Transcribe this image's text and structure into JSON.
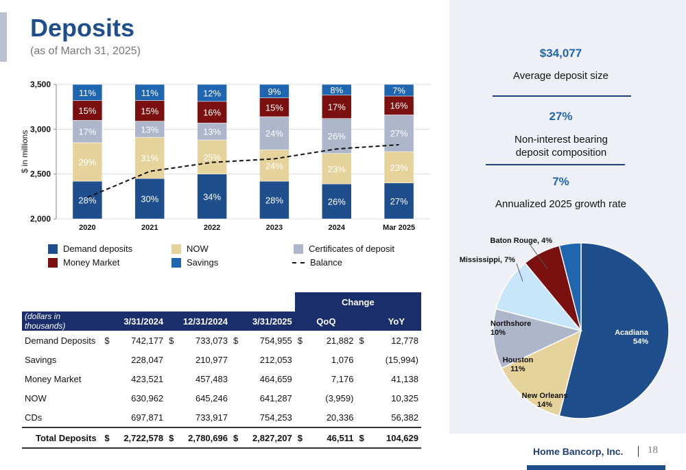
{
  "header": {
    "title": "Deposits",
    "subtitle": "(as of March 31, 2025)"
  },
  "stats": [
    {
      "value": "$34,077",
      "label": "Average deposit size"
    },
    {
      "value": "27%",
      "label": "Non-interest bearing deposit composition"
    },
    {
      "value": "7%",
      "label": "Annualized 2025 growth rate"
    }
  ],
  "chart_data": [
    {
      "type": "bar",
      "stacked": true,
      "ylabel": "$ in millions",
      "ylim": [
        2000,
        3500
      ],
      "yticks": [
        "2,000",
        "2,500",
        "3,000",
        "3,500"
      ],
      "categories": [
        "2020",
        "2021",
        "2022",
        "2023",
        "2024",
        "Mar 2025"
      ],
      "series": [
        {
          "name": "Demand deposits",
          "color": "#1f4e8c",
          "labels": [
            "28%",
            "30%",
            "34%",
            "28%",
            "26%",
            "27%"
          ]
        },
        {
          "name": "NOW",
          "color": "#e6d39b",
          "labels": [
            "29%",
            "31%",
            "25%",
            "24%",
            "23%",
            "23%"
          ]
        },
        {
          "name": "Certificates of deposit",
          "color": "#adb6cb",
          "labels": [
            "17%",
            "13%",
            "13%",
            "24%",
            "26%",
            "27%"
          ]
        },
        {
          "name": "Money Market",
          "color": "#7a1010",
          "labels": [
            "15%",
            "15%",
            "16%",
            "15%",
            "17%",
            "16%"
          ]
        },
        {
          "name": "Savings",
          "color": "#2065b0",
          "labels": [
            "11%",
            "11%",
            "12%",
            "9%",
            "8%",
            "7%"
          ]
        }
      ],
      "bar_segment_tops": [
        [
          2420,
          2850,
          3100,
          3320,
          3500
        ],
        [
          2450,
          2910,
          3090,
          3320,
          3500
        ],
        [
          2500,
          2880,
          3070,
          3310,
          3500
        ],
        [
          2420,
          2770,
          3140,
          3350,
          3500
        ],
        [
          2390,
          2730,
          3120,
          3380,
          3500
        ],
        [
          2400,
          2750,
          3160,
          3370,
          3500
        ]
      ],
      "balance": {
        "name": "Balance",
        "values": [
          2240,
          2530,
          2630,
          2670,
          2780,
          2827
        ]
      }
    },
    {
      "type": "pie",
      "slices": [
        {
          "label": "Acadiana",
          "value": 54,
          "text": "54%",
          "color": "#1f4e8c"
        },
        {
          "label": "New Orleans",
          "value": 14,
          "text": "14%",
          "color": "#e6d39b"
        },
        {
          "label": "Houston",
          "value": 11,
          "text": "11%",
          "color": "#adb6cb"
        },
        {
          "label": "Northshore",
          "value": 10,
          "text": "10%",
          "color": "#c7e6fa"
        },
        {
          "label": "Mississippi",
          "value": 7,
          "text": "Mississippi, 7%",
          "color": "#7a1010"
        },
        {
          "label": "Baton Rouge",
          "value": 4,
          "text": "Baton Rouge, 4%",
          "color": "#2065b0"
        }
      ]
    }
  ],
  "table": {
    "change_header": "Change",
    "units_label": "(dollars in thousands)",
    "columns": [
      "3/31/2024",
      "12/31/2024",
      "3/31/2025",
      "QoQ",
      "YoY"
    ],
    "rows": [
      {
        "label": "Demand Deposits",
        "c1": "742,177",
        "c2": "733,073",
        "c3": "754,955",
        "qoq": "21,882",
        "yoy": "12,778",
        "dollar": "$"
      },
      {
        "label": "Savings",
        "c1": "228,047",
        "c2": "210,977",
        "c3": "212,053",
        "qoq": "1,076",
        "yoy": "(15,994)",
        "dollar": ""
      },
      {
        "label": "Money Market",
        "c1": "423,521",
        "c2": "457,483",
        "c3": "464,659",
        "qoq": "7,176",
        "yoy": "41,138",
        "dollar": ""
      },
      {
        "label": "NOW",
        "c1": "630,962",
        "c2": "645,246",
        "c3": "641,287",
        "qoq": "(3,959)",
        "yoy": "10,325",
        "dollar": ""
      },
      {
        "label": "CDs",
        "c1": "697,871",
        "c2": "733,917",
        "c3": "754,253",
        "qoq": "20,336",
        "yoy": "56,382",
        "dollar": ""
      }
    ],
    "total": {
      "label": "Total Deposits",
      "c1": "2,722,578",
      "c2": "2,780,696",
      "c3": "2,827,207",
      "qoq": "46,511",
      "yoy": "104,629",
      "dollar": "$"
    }
  },
  "footer": {
    "logo_text": "Home Bancorp, Inc.",
    "page_number": "18"
  }
}
